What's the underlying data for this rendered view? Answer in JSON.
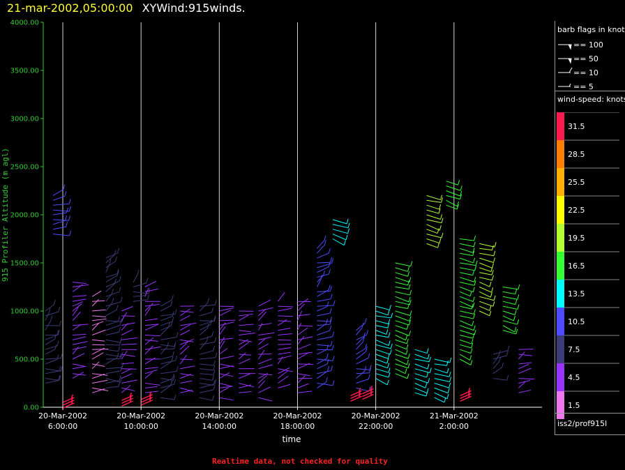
{
  "header": {
    "date_title": "21-mar-2002,05:00:00",
    "chart_title": "XYWind:915winds."
  },
  "chart_data": {
    "type": "scatter",
    "subtype": "wind-barb time-height profile",
    "ylabel": "915 Profiler Altitude (m agl)",
    "xlabel": "time",
    "ylim": [
      0,
      4000
    ],
    "yticks": [
      "0.00",
      "500.00",
      "1000.00",
      "1500.00",
      "2000.00",
      "2500.00",
      "3000.00",
      "3500.00",
      "4000.00"
    ],
    "yticks_values": [
      0,
      500,
      1000,
      1500,
      2000,
      2500,
      3000,
      3500,
      4000
    ],
    "xlim_hours": [
      5.0,
      30.5
    ],
    "xticks": [
      {
        "hour": 6,
        "line1": "20-Mar-2002",
        "line2": "6:00:00"
      },
      {
        "hour": 10,
        "line1": "20-Mar-2002",
        "line2": "10:00:00"
      },
      {
        "hour": 14,
        "line1": "20-Mar-2002",
        "line2": "14:00:00"
      },
      {
        "hour": 18,
        "line1": "20-Mar-2002",
        "line2": "18:00:00"
      },
      {
        "hour": 22,
        "line1": "20-Mar-2002",
        "line2": "22:00:00"
      },
      {
        "hour": 26,
        "line1": "21-Mar-2002",
        "line2": "2:00:00"
      }
    ],
    "grid": "vertical lines at x ticks",
    "profiles": [
      {
        "hour": 5.1,
        "bottom": 250,
        "top": 1000,
        "speed": 7.5
      },
      {
        "hour": 5.5,
        "bottom": 1800,
        "top": 2200,
        "speed": 10.5
      },
      {
        "hour": 6.5,
        "bottom": 300,
        "top": 1300,
        "speed": 4.5
      },
      {
        "hour": 7.5,
        "bottom": 150,
        "top": 1150,
        "speed": 1.5
      },
      {
        "hour": 8.2,
        "bottom": 200,
        "top": 1550,
        "speed": 7.5
      },
      {
        "hour": 9.0,
        "bottom": 150,
        "top": 1000,
        "speed": 4.5
      },
      {
        "hour": 9.6,
        "bottom": 1100,
        "top": 1300,
        "speed": 7.5
      },
      {
        "hour": 10.2,
        "bottom": 150,
        "top": 1250,
        "speed": 4.5
      },
      {
        "hour": 11.0,
        "bottom": 100,
        "top": 1050,
        "speed": 7.5
      },
      {
        "hour": 12.0,
        "bottom": 150,
        "top": 1050,
        "speed": 4.5
      },
      {
        "hour": 13.0,
        "bottom": 100,
        "top": 1050,
        "speed": 7.5
      },
      {
        "hour": 14.0,
        "bottom": 100,
        "top": 1050,
        "speed": 4.5
      },
      {
        "hour": 15.0,
        "bottom": 150,
        "top": 1000,
        "speed": 4.5
      },
      {
        "hour": 16.0,
        "bottom": 100,
        "top": 1050,
        "speed": 4.5
      },
      {
        "hour": 17.0,
        "bottom": 200,
        "top": 1100,
        "speed": 4.5
      },
      {
        "hour": 18.0,
        "bottom": 150,
        "top": 1100,
        "speed": 4.5
      },
      {
        "hour": 19.0,
        "bottom": 200,
        "top": 1650,
        "speed": 10.5
      },
      {
        "hour": 19.8,
        "bottom": 1750,
        "top": 1950,
        "speed": 13.5
      },
      {
        "hour": 21.0,
        "bottom": 200,
        "top": 800,
        "speed": 10.5
      },
      {
        "hour": 22.0,
        "bottom": 300,
        "top": 1050,
        "speed": 13.5
      },
      {
        "hour": 23.0,
        "bottom": 350,
        "top": 1500,
        "speed": 16.5
      },
      {
        "hour": 24.0,
        "bottom": 150,
        "top": 600,
        "speed": 13.5
      },
      {
        "hour": 24.6,
        "bottom": 1700,
        "top": 2200,
        "speed": 19.5
      },
      {
        "hour": 25.0,
        "bottom": 100,
        "top": 500,
        "speed": 13.5
      },
      {
        "hour": 25.6,
        "bottom": 2100,
        "top": 2350,
        "speed": 16.5
      },
      {
        "hour": 26.3,
        "bottom": 500,
        "top": 1750,
        "speed": 16.5
      },
      {
        "hour": 27.3,
        "bottom": 1000,
        "top": 1700,
        "speed": 19.5
      },
      {
        "hour": 28.5,
        "bottom": 800,
        "top": 1250,
        "speed": 16.5
      },
      {
        "hour": 28.0,
        "bottom": 300,
        "top": 550,
        "speed": 7.5
      },
      {
        "hour": 29.3,
        "bottom": 150,
        "top": 600,
        "speed": 4.5
      }
    ],
    "low_level_flags": [
      {
        "hour": 6.3,
        "alt": 80,
        "speed": 31.5
      },
      {
        "hour": 9.3,
        "alt": 100,
        "speed": 31.5
      },
      {
        "hour": 10.3,
        "alt": 110,
        "speed": 31.5
      },
      {
        "hour": 21.0,
        "alt": 150,
        "speed": 31.5
      },
      {
        "hour": 21.6,
        "alt": 170,
        "speed": 31.5
      },
      {
        "hour": 26.6,
        "alt": 150,
        "speed": 31.5
      }
    ]
  },
  "legend": {
    "barb_title": "barb flags in knots",
    "barb_items": [
      {
        "label": "== 100",
        "kind": "pennant"
      },
      {
        "label": "== 50",
        "kind": "pennant"
      },
      {
        "label": "== 10",
        "kind": "full"
      },
      {
        "label": "== 5",
        "kind": "half"
      }
    ],
    "speed_title": "wind-speed: knots",
    "colorbar": [
      {
        "label": "31.5",
        "color": "#ff1a4d"
      },
      {
        "label": "28.5",
        "color": "#ff8000"
      },
      {
        "label": "25.5",
        "color": "#ffb000"
      },
      {
        "label": "22.5",
        "color": "#ffff00"
      },
      {
        "label": "19.5",
        "color": "#b4ff33"
      },
      {
        "label": "16.5",
        "color": "#33ff33"
      },
      {
        "label": "13.5",
        "color": "#00ffff"
      },
      {
        "label": "10.5",
        "color": "#4d4dff"
      },
      {
        "label": "7.5",
        "color": "#3c3c78"
      },
      {
        "label": "4.5",
        "color": "#9933ff"
      },
      {
        "label": "1.5",
        "color": "#ee77ee"
      }
    ],
    "source": "iss2/prof915l"
  },
  "footer": {
    "quality_note": "Realtime data, not checked for quality"
  },
  "colors": {
    "axis_y": "#33cc33",
    "axis_x": "#ffffff",
    "grid": "#ffffff",
    "title_date": "#ffff33",
    "quality_note": "#ff2222"
  }
}
